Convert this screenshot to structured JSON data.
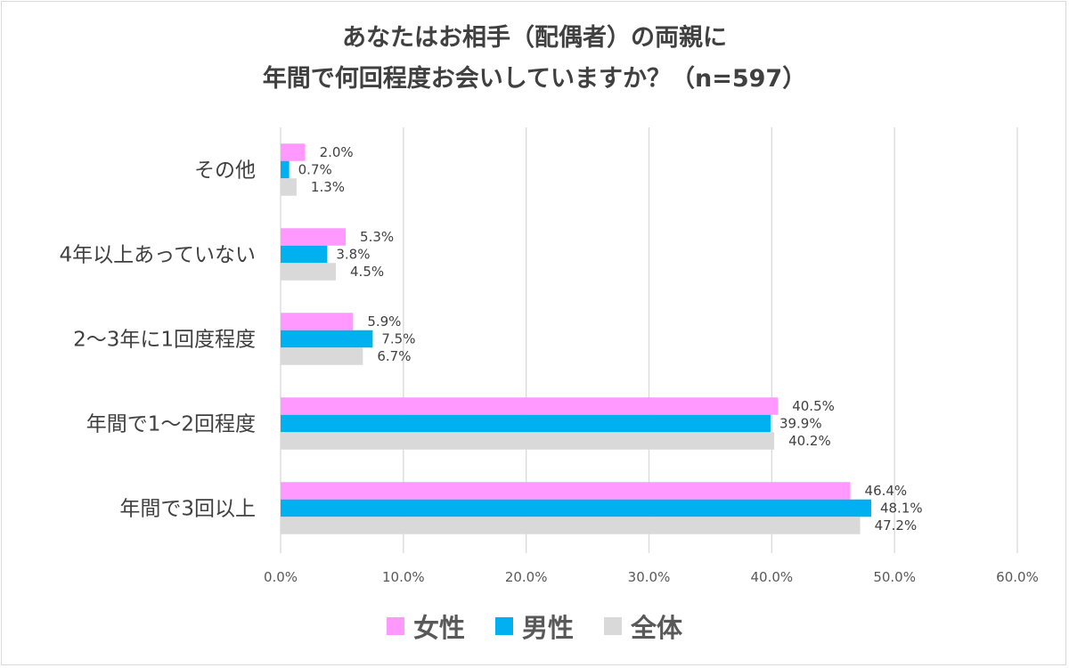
{
  "chart_data": {
    "type": "bar",
    "orientation": "horizontal",
    "title_lines": [
      "あなたはお相手（配偶者）の両親に",
      "年間で何回程度お会いしていますか？（n=597）"
    ],
    "categories": [
      "その他",
      "4年以上あっていない",
      "2〜3年に1回度程度",
      "年間で1〜2回程度",
      "年間で3回以上"
    ],
    "series": [
      {
        "name": "女性",
        "color": "#FF99FF",
        "values": [
          2.0,
          5.3,
          5.9,
          40.5,
          46.4
        ],
        "labels": [
          "2.0%",
          "5.3%",
          "5.9%",
          "40.5%",
          "46.4%"
        ]
      },
      {
        "name": "男性",
        "color": "#00B0F0",
        "values": [
          0.7,
          3.8,
          7.5,
          39.9,
          48.1
        ],
        "labels": [
          "0.7%",
          "3.8%",
          "7.5%",
          "39.9%",
          "48.1%"
        ]
      },
      {
        "name": "全体",
        "color": "#D9D9D9",
        "values": [
          1.3,
          4.5,
          6.7,
          40.2,
          47.2
        ],
        "labels": [
          "1.3%",
          "4.5%",
          "6.7%",
          "40.2%",
          "47.2%"
        ]
      }
    ],
    "xlim": [
      0,
      60
    ],
    "x_ticks": [
      "0.0%",
      "10.0%",
      "20.0%",
      "30.0%",
      "40.0%",
      "50.0%",
      "60.0%"
    ],
    "grid": true,
    "legend_position": "bottom"
  }
}
